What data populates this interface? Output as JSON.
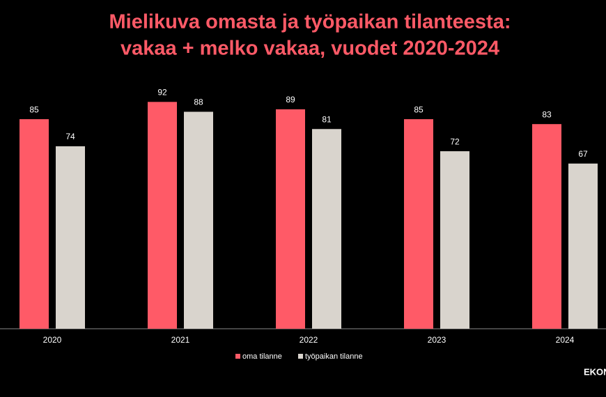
{
  "chart_data": {
    "type": "bar",
    "title": [
      "Mielikuva omasta ja työpaikan tilanteesta:",
      "vakaa + melko vakaa, vuodet 2020-2024"
    ],
    "categories": [
      "2020",
      "2021",
      "2022",
      "2023",
      "2024"
    ],
    "series": [
      {
        "name": "oma tilanne",
        "color": "#ff5a67",
        "values": [
          85,
          92,
          89,
          85,
          83
        ]
      },
      {
        "name": "työpaikan tilanne",
        "color": "#d9d4cd",
        "values": [
          74,
          88,
          81,
          72,
          67
        ]
      }
    ],
    "ylim": [
      0,
      100
    ],
    "legend": "bottom",
    "watermark": "EKON"
  }
}
